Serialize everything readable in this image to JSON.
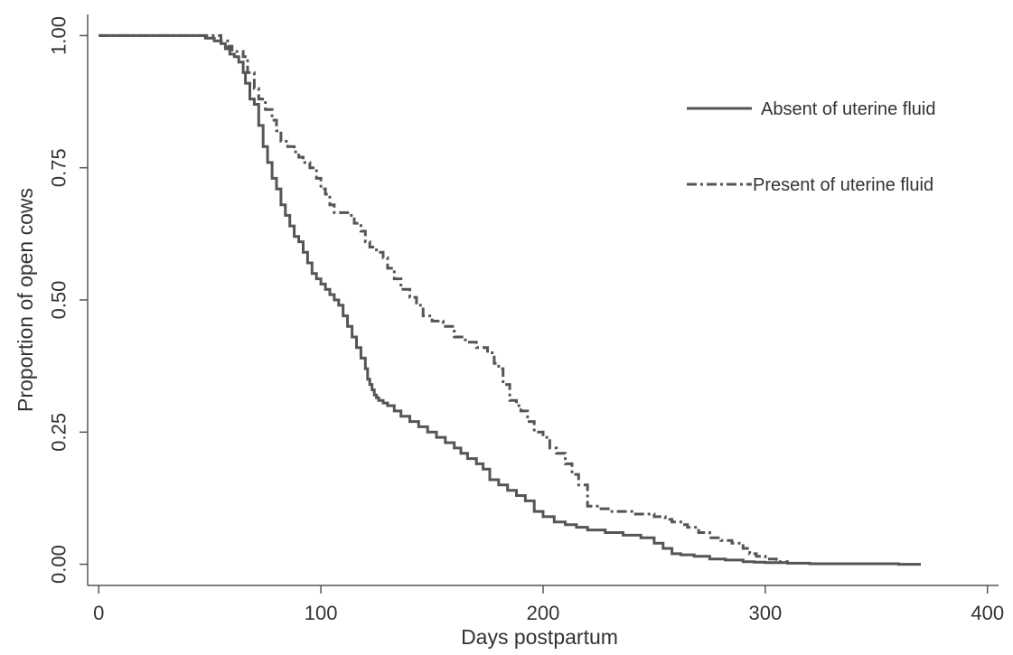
{
  "chart_data": {
    "type": "line",
    "xlabel": "Days postpartum",
    "ylabel": "Proportion of open cows",
    "xlim": [
      -5,
      405
    ],
    "ylim": [
      -0.04,
      1.04
    ],
    "x_ticks": [
      0,
      100,
      200,
      300,
      400
    ],
    "y_ticks": [
      0,
      0.25,
      0.5,
      0.75,
      1
    ],
    "x_tick_labels": [
      "0",
      "100",
      "200",
      "300",
      "400"
    ],
    "y_tick_labels": [
      "0.00",
      "0.25",
      "0.50",
      "0.75",
      "1.00"
    ],
    "grid": false,
    "legend_position": "top-right",
    "series": [
      {
        "name": "Absent of uterine fluid",
        "style": "solid",
        "color": "#555555",
        "x": [
          0,
          45,
          48,
          52,
          55,
          57,
          59,
          61,
          63,
          65,
          66,
          68,
          70,
          72,
          74,
          76,
          78,
          80,
          82,
          84,
          86,
          88,
          90,
          92,
          94,
          96,
          98,
          100,
          102,
          104,
          106,
          108,
          110,
          112,
          114,
          116,
          118,
          120,
          121,
          122,
          123,
          124,
          125,
          126,
          128,
          130,
          133,
          136,
          140,
          144,
          148,
          152,
          156,
          160,
          163,
          166,
          170,
          173,
          176,
          180,
          184,
          188,
          192,
          196,
          200,
          205,
          210,
          215,
          220,
          228,
          236,
          244,
          250,
          254,
          258,
          262,
          268,
          275,
          282,
          290,
          295,
          300,
          310,
          320,
          340,
          360,
          370
        ],
        "y": [
          1.0,
          1.0,
          0.995,
          0.99,
          0.985,
          0.975,
          0.965,
          0.96,
          0.95,
          0.93,
          0.91,
          0.88,
          0.87,
          0.83,
          0.79,
          0.76,
          0.73,
          0.71,
          0.68,
          0.66,
          0.64,
          0.62,
          0.61,
          0.59,
          0.57,
          0.55,
          0.54,
          0.53,
          0.52,
          0.51,
          0.5,
          0.49,
          0.47,
          0.45,
          0.43,
          0.41,
          0.39,
          0.37,
          0.35,
          0.34,
          0.33,
          0.32,
          0.315,
          0.31,
          0.305,
          0.3,
          0.29,
          0.28,
          0.27,
          0.26,
          0.25,
          0.24,
          0.23,
          0.22,
          0.21,
          0.2,
          0.19,
          0.18,
          0.16,
          0.15,
          0.14,
          0.13,
          0.12,
          0.1,
          0.09,
          0.08,
          0.075,
          0.07,
          0.065,
          0.06,
          0.055,
          0.05,
          0.04,
          0.03,
          0.02,
          0.018,
          0.015,
          0.01,
          0.008,
          0.005,
          0.004,
          0.003,
          0.002,
          0.001,
          0.001,
          0.0,
          0.0
        ]
      },
      {
        "name": "Present of uterine fluid",
        "style": "dash-dot",
        "color": "#555555",
        "x": [
          0,
          50,
          55,
          58,
          60,
          65,
          67,
          70,
          72,
          75,
          78,
          80,
          82,
          85,
          88,
          90,
          92,
          95,
          98,
          100,
          102,
          104,
          106,
          110,
          113,
          115,
          118,
          120,
          122,
          125,
          128,
          130,
          133,
          136,
          140,
          143,
          146,
          150,
          155,
          160,
          165,
          170,
          175,
          178,
          180,
          182,
          185,
          188,
          190,
          193,
          196,
          200,
          203,
          206,
          210,
          213,
          216,
          220,
          222,
          225,
          230,
          240,
          250,
          255,
          258,
          262,
          265,
          270,
          275,
          280,
          285,
          290,
          293,
          296,
          300,
          305,
          310
        ],
        "y": [
          1.0,
          1.0,
          0.99,
          0.98,
          0.97,
          0.96,
          0.93,
          0.9,
          0.88,
          0.86,
          0.84,
          0.82,
          0.8,
          0.79,
          0.78,
          0.77,
          0.76,
          0.75,
          0.73,
          0.71,
          0.7,
          0.68,
          0.665,
          0.665,
          0.66,
          0.645,
          0.63,
          0.61,
          0.6,
          0.59,
          0.58,
          0.56,
          0.54,
          0.52,
          0.505,
          0.49,
          0.47,
          0.46,
          0.45,
          0.43,
          0.42,
          0.41,
          0.4,
          0.38,
          0.37,
          0.34,
          0.31,
          0.3,
          0.29,
          0.27,
          0.25,
          0.24,
          0.22,
          0.21,
          0.19,
          0.17,
          0.15,
          0.11,
          0.11,
          0.105,
          0.1,
          0.095,
          0.09,
          0.085,
          0.08,
          0.075,
          0.07,
          0.06,
          0.05,
          0.045,
          0.04,
          0.03,
          0.02,
          0.015,
          0.01,
          0.005,
          0.0
        ]
      }
    ]
  }
}
